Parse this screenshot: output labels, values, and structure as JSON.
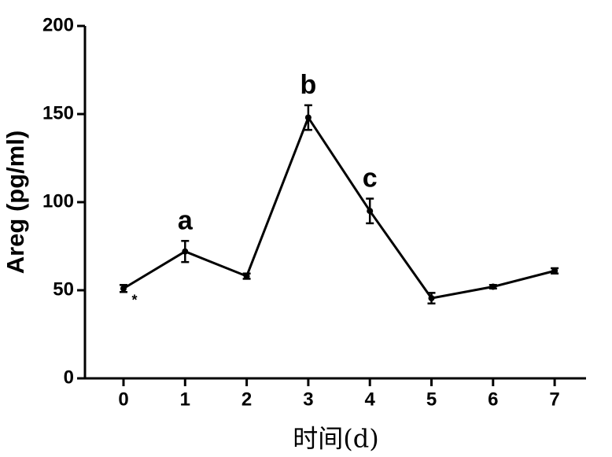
{
  "chart_data": {
    "type": "line",
    "x_label": "时间(d)",
    "y_label": "Areg (pg/ml)",
    "categories": [
      "0",
      "1",
      "2",
      "3",
      "4",
      "5",
      "6",
      "7"
    ],
    "values": [
      51,
      72,
      58,
      148,
      95,
      45.5,
      52,
      61
    ],
    "errors": [
      2,
      6,
      1.5,
      7,
      7,
      3,
      1,
      1.5
    ],
    "point_labels": [
      "*",
      "a",
      null,
      "b",
      "c",
      null,
      null,
      null
    ],
    "color": "#000000",
    "ylim": [
      0,
      200
    ],
    "yticks": [
      0,
      50,
      100,
      150,
      200
    ]
  }
}
